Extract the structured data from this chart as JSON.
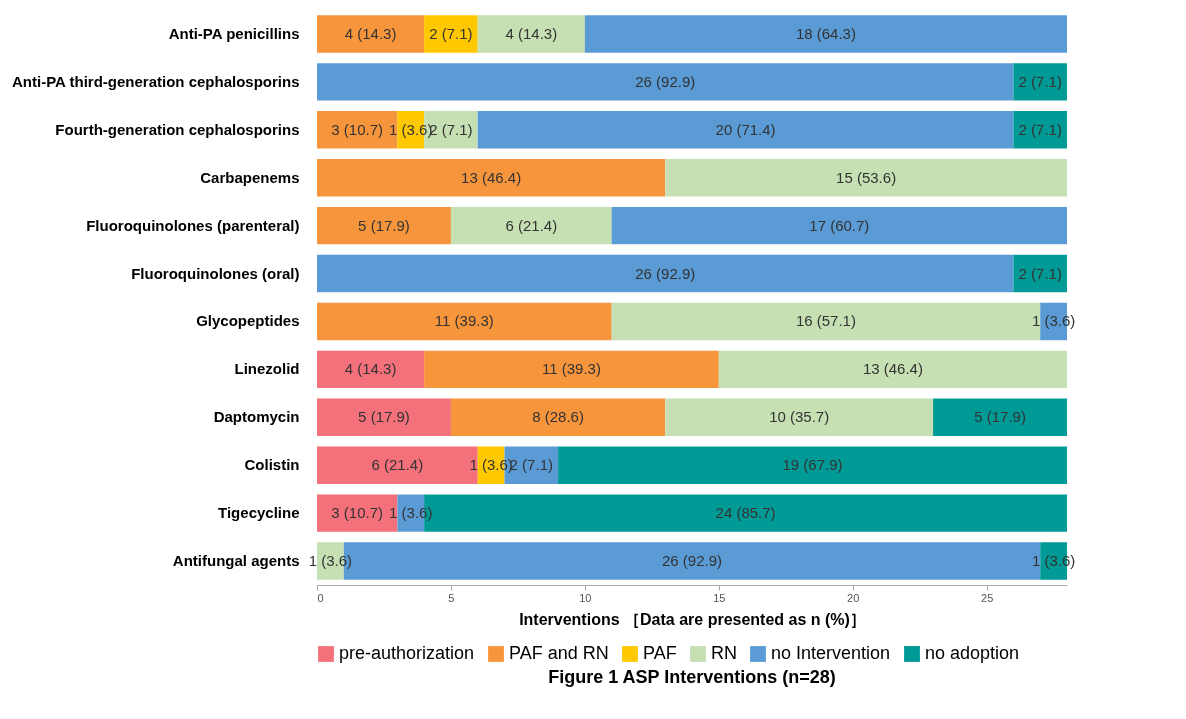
{
  "chart_data": {
    "type": "bar",
    "orientation": "horizontal",
    "stacked": true,
    "title": "Figure 1  ASP Interventions (n=28)",
    "xlabel": "Interventions ［Data are presented as n (%)］",
    "legend": "bottom",
    "xlim": [
      0,
      28
    ],
    "xticks": [
      0,
      5,
      10,
      15,
      20,
      25
    ],
    "categories": [
      "Anti-PA penicillins",
      "Anti-PA third-generation cephalosporins",
      "Fourth-generation cephalosporins",
      "Carbapenems",
      "Fluoroquinolones (parenteral)",
      "Fluoroquinolones (oral)",
      "Glycopeptides",
      "Linezolid",
      "Daptomycin",
      "Colistin",
      "Tigecycline",
      "Antifungal agents"
    ],
    "series": [
      {
        "name": "pre-authorization",
        "color": "#f4707a",
        "values": [
          null,
          null,
          null,
          null,
          null,
          null,
          null,
          4,
          5,
          6,
          3,
          null
        ],
        "value_labels": [
          null,
          null,
          null,
          null,
          null,
          null,
          null,
          "4 (14.3)",
          "5 (17.9)",
          "6 (21.4)",
          "3 (10.7)",
          null
        ]
      },
      {
        "name": "PAF and RN",
        "color": "#f7953c",
        "values": [
          4,
          null,
          3,
          13,
          5,
          null,
          11,
          11,
          8,
          null,
          null,
          null
        ],
        "value_labels": [
          "4 (14.3)",
          null,
          "3 (10.7)",
          "13 (46.4)",
          "5 (17.9)",
          null,
          "11 (39.3)",
          "11 (39.3)",
          "8 (28.6)",
          null,
          null,
          null
        ]
      },
      {
        "name": "PAF",
        "color": "#ffc800",
        "values": [
          2,
          null,
          1,
          null,
          null,
          null,
          null,
          null,
          null,
          1,
          null,
          null
        ],
        "value_labels": [
          "2 (7.1)",
          null,
          "1 (3.6)",
          null,
          null,
          null,
          null,
          null,
          null,
          "1 (3.6)",
          null,
          null
        ]
      },
      {
        "name": "RN",
        "color": "#c6e0b4",
        "values": [
          4,
          null,
          2,
          15,
          6,
          null,
          16,
          13,
          10,
          null,
          null,
          1
        ],
        "value_labels": [
          "4 (14.3)",
          null,
          "2 (7.1)",
          "15 (53.6)",
          "6 (21.4)",
          null,
          "16 (57.1)",
          "13 (46.4)",
          "10 (35.7)",
          null,
          null,
          "1 (3.6)"
        ]
      },
      {
        "name": "no Intervention",
        "color": "#5b9bd5",
        "values": [
          18,
          26,
          20,
          null,
          17,
          26,
          1,
          null,
          null,
          2,
          1,
          26
        ],
        "value_labels": [
          "18 (64.3)",
          "26 (92.9)",
          "20 (71.4)",
          null,
          "17 (60.7)",
          "26 (92.9)",
          "1 (3.6)",
          null,
          null,
          "2 (7.1)",
          "1 (3.6)",
          "26 (92.9)"
        ]
      },
      {
        "name": "no adoption",
        "color": "#009a96",
        "values": [
          null,
          2,
          2,
          null,
          null,
          2,
          null,
          null,
          5,
          19,
          24,
          1
        ],
        "value_labels": [
          null,
          "2 (7.1)",
          "2 (7.1)",
          null,
          null,
          "2 (7.1)",
          null,
          null,
          "5 (17.9)",
          "19 (67.9)",
          "24 (85.7)",
          "1 (3.6)"
        ]
      }
    ]
  }
}
